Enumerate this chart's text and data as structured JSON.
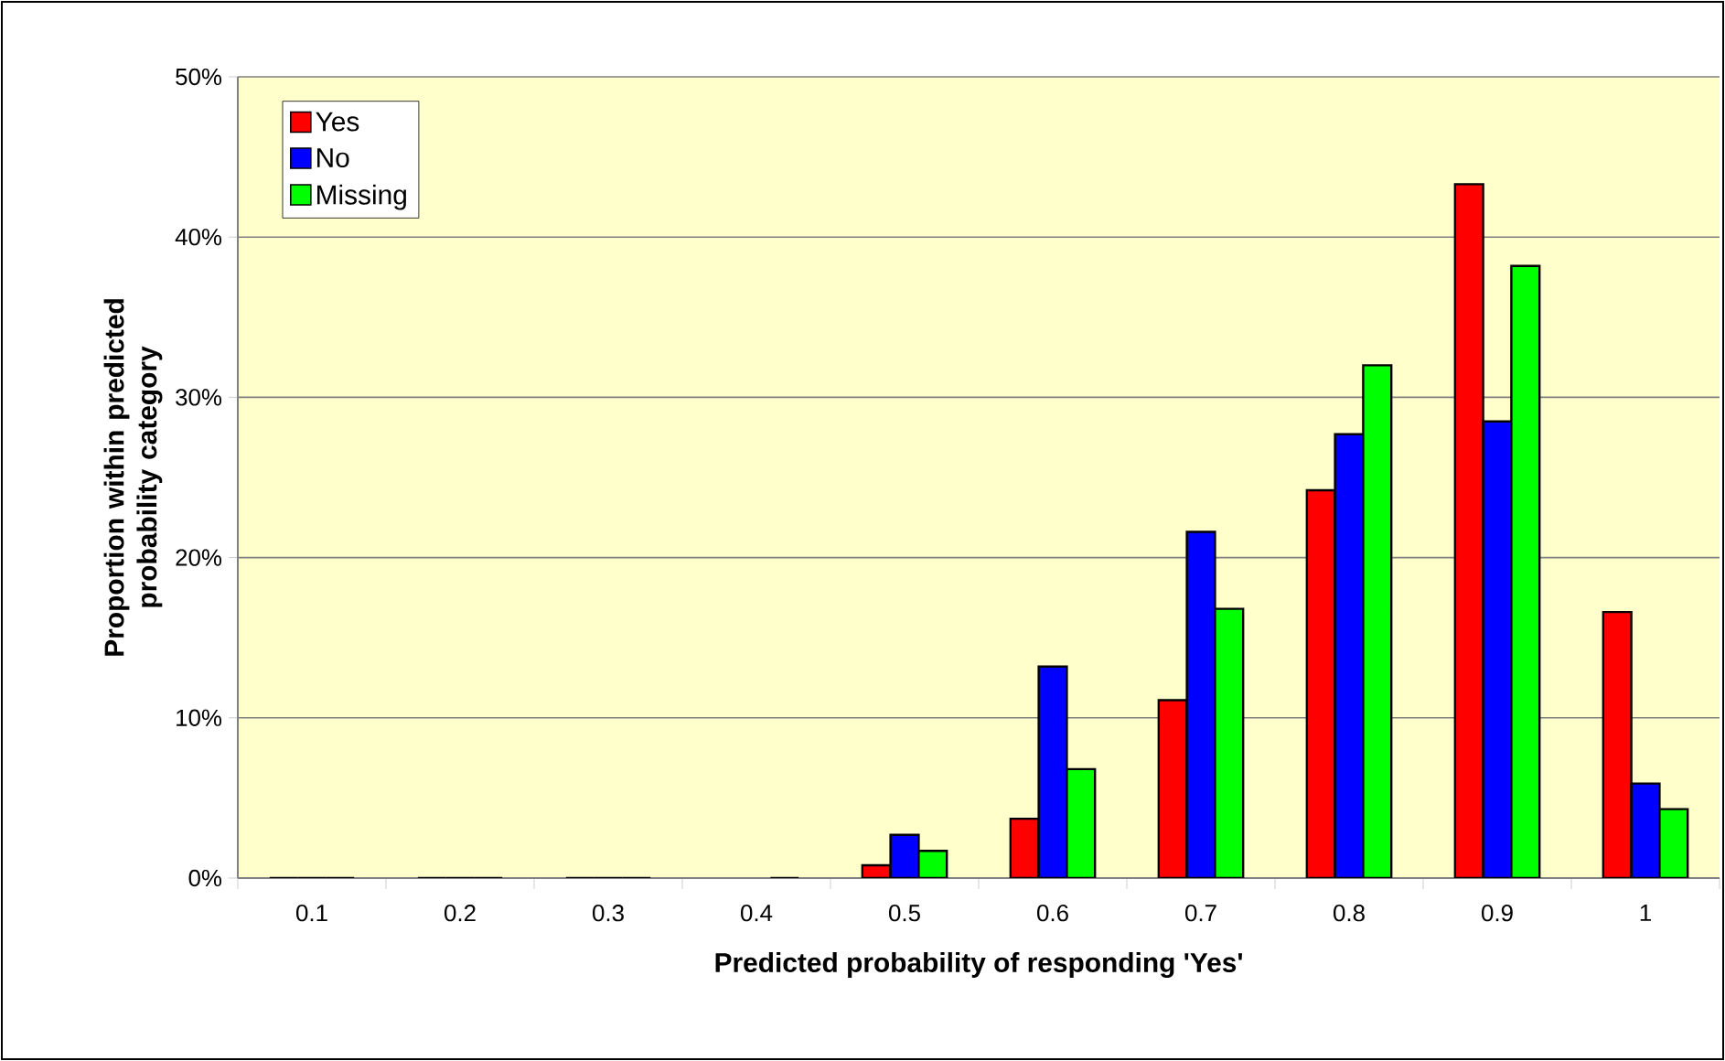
{
  "chart_data": {
    "type": "bar",
    "xlabel": "Predicted probability of responding 'Yes'",
    "ylabel": "Proportion within predicted probability category",
    "categories": [
      "0.1",
      "0.2",
      "0.3",
      "0.4",
      "0.5",
      "0.6",
      "0.7",
      "0.8",
      "0.9",
      "1"
    ],
    "series": [
      {
        "name": "Yes",
        "color": "#ff0000",
        "values": [
          0,
          0,
          0,
          null,
          0.8,
          3.7,
          11.1,
          24.2,
          43.3,
          16.6
        ]
      },
      {
        "name": "No",
        "color": "#0000ff",
        "values": [
          0,
          0,
          0,
          null,
          2.7,
          13.2,
          21.6,
          27.7,
          28.5,
          5.9
        ]
      },
      {
        "name": "Missing",
        "color": "#00ff00",
        "values": [
          0,
          0,
          0,
          0,
          1.7,
          6.8,
          16.8,
          32.0,
          38.2,
          4.3
        ]
      }
    ],
    "ylim": [
      0,
      50
    ],
    "yticks": [
      {
        "value": 0,
        "label": "0%"
      },
      {
        "value": 10,
        "label": "10%"
      },
      {
        "value": 20,
        "label": "20%"
      },
      {
        "value": 30,
        "label": "30%"
      },
      {
        "value": 40,
        "label": "40%"
      },
      {
        "value": 50,
        "label": "50%"
      }
    ],
    "grid": "y",
    "legend": "top left"
  }
}
